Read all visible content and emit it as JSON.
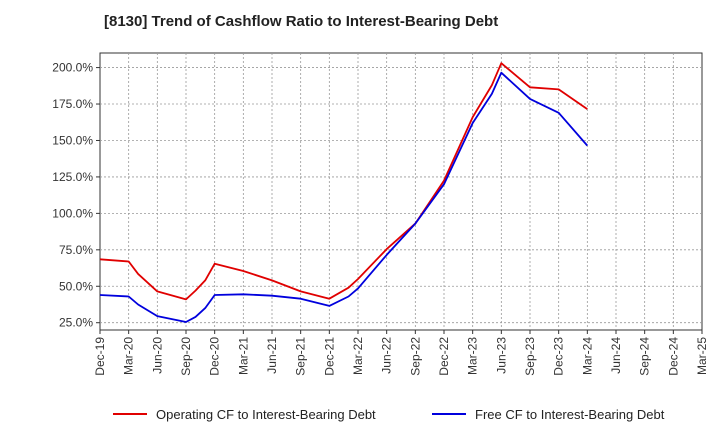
{
  "chart_data": {
    "type": "line",
    "title": "[8130]  Trend of Cashflow Ratio to Interest-Bearing Debt",
    "x": [
      "Dec-19",
      "Mar-20",
      "Jun-20",
      "Sep-20",
      "Dec-20",
      "Mar-21",
      "Jun-21",
      "Sep-21",
      "Dec-21",
      "Mar-22",
      "Jun-22",
      "Sep-22",
      "Dec-22",
      "Mar-23",
      "Jun-23",
      "Sep-23",
      "Dec-23",
      "Mar-24",
      "Jun-24",
      "Sep-24",
      "Dec-24",
      "Mar-25"
    ],
    "ylim": [
      20,
      210
    ],
    "yticks": [
      25,
      50,
      75,
      100,
      125,
      150,
      175,
      200
    ],
    "ytick_labels": [
      "25.0%",
      "50.0%",
      "75.0%",
      "100.0%",
      "125.0%",
      "150.0%",
      "175.0%",
      "200.0%"
    ],
    "grid": true,
    "legend_position": "bottom",
    "series": [
      {
        "name": "Operating CF to Interest-Bearing Debt",
        "color": "#e00000",
        "points": [
          [
            0,
            68.5
          ],
          [
            1,
            67.0
          ],
          [
            1.33,
            58.5
          ],
          [
            2,
            46.5
          ],
          [
            3,
            41.0
          ],
          [
            3.33,
            47.0
          ],
          [
            3.67,
            54.0
          ],
          [
            4,
            65.5
          ],
          [
            5,
            60.5
          ],
          [
            6,
            54.0
          ],
          [
            7,
            46.5
          ],
          [
            8,
            41.5
          ],
          [
            8.67,
            49.0
          ],
          [
            9,
            55.0
          ],
          [
            10,
            75.5
          ],
          [
            11,
            93.0
          ],
          [
            12,
            122.5
          ],
          [
            13,
            166.0
          ],
          [
            13.67,
            188.0
          ],
          [
            14,
            203.0
          ],
          [
            15,
            186.5
          ],
          [
            16,
            185.0
          ],
          [
            17,
            171.5
          ]
        ]
      },
      {
        "name": "Free CF to Interest-Bearing Debt",
        "color": "#0000dd",
        "points": [
          [
            0,
            44.0
          ],
          [
            1,
            43.0
          ],
          [
            1.33,
            37.5
          ],
          [
            2,
            29.5
          ],
          [
            3,
            25.5
          ],
          [
            3.33,
            29.0
          ],
          [
            3.67,
            35.0
          ],
          [
            4,
            44.0
          ],
          [
            5,
            44.5
          ],
          [
            6,
            43.5
          ],
          [
            7,
            41.5
          ],
          [
            8,
            36.5
          ],
          [
            8.67,
            43.0
          ],
          [
            9,
            48.5
          ],
          [
            10,
            71.5
          ],
          [
            11,
            93.0
          ],
          [
            12,
            120.0
          ],
          [
            13,
            162.0
          ],
          [
            13.67,
            182.0
          ],
          [
            14,
            196.5
          ],
          [
            15,
            178.5
          ],
          [
            16,
            169.0
          ],
          [
            17,
            146.5
          ]
        ]
      }
    ]
  }
}
